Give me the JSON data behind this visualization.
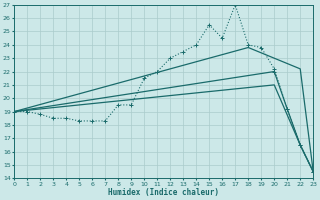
{
  "background_color": "#cce8e8",
  "grid_color": "#aacccc",
  "line_color": "#1a6b6b",
  "x_label": "Humidex (Indice chaleur)",
  "ylim": [
    14,
    27
  ],
  "xlim": [
    0,
    23
  ],
  "yticks": [
    14,
    15,
    16,
    17,
    18,
    19,
    20,
    21,
    22,
    23,
    24,
    25,
    26,
    27
  ],
  "xticks": [
    0,
    1,
    2,
    3,
    4,
    5,
    6,
    7,
    8,
    9,
    10,
    11,
    12,
    13,
    14,
    15,
    16,
    17,
    18,
    19,
    20,
    21,
    22,
    23
  ],
  "series": [
    {
      "name": "dotted_curve",
      "x": [
        0,
        1,
        2,
        3,
        4,
        5,
        6,
        7,
        8,
        9,
        10,
        11,
        12,
        13,
        14,
        15,
        16,
        17,
        18,
        19,
        20,
        21,
        22,
        23
      ],
      "y": [
        19,
        19,
        18.8,
        18.5,
        18.5,
        18.3,
        18.3,
        18.3,
        19.5,
        19.5,
        21.5,
        22.0,
        23.0,
        23.5,
        24.0,
        25.5,
        24.5,
        27.0,
        24.0,
        23.8,
        22.2,
        19.2,
        16.5,
        14.5
      ]
    },
    {
      "name": "upper_solid",
      "x": [
        0,
        18,
        22,
        23
      ],
      "y": [
        19,
        23.8,
        22.2,
        14.5
      ]
    },
    {
      "name": "middle_solid",
      "x": [
        0,
        20,
        21,
        22,
        23
      ],
      "y": [
        19,
        22.0,
        19.2,
        16.5,
        14.5
      ]
    },
    {
      "name": "lower_solid",
      "x": [
        0,
        20,
        22,
        23
      ],
      "y": [
        19,
        21.0,
        16.5,
        14.5
      ]
    }
  ]
}
